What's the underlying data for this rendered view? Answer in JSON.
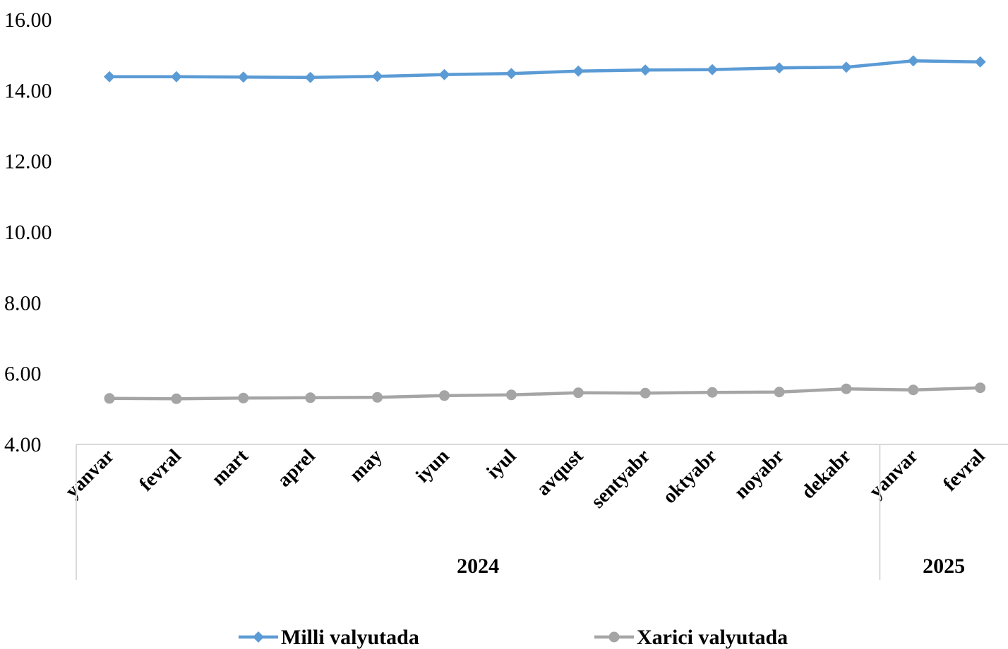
{
  "chart_data": {
    "type": "line",
    "categories": [
      "yanvar",
      "fevral",
      "mart",
      "aprel",
      "may",
      "iyun",
      "iyul",
      "avqust",
      "sentyabr",
      "oktyabr",
      "noyabr",
      "dekabr",
      "yanvar",
      "fevral"
    ],
    "groups": [
      {
        "label": "2024",
        "count": 12
      },
      {
        "label": "2025",
        "count": 2
      }
    ],
    "yticks": [
      "4.00",
      "6.00",
      "8.00",
      "10.00",
      "12.00",
      "14.00",
      "16.00"
    ],
    "ylim": [
      4,
      16
    ],
    "series": [
      {
        "name": "Milli valyutada",
        "color": "#5B9BD5",
        "marker": "diamond",
        "values": [
          14.39,
          14.39,
          14.38,
          14.37,
          14.4,
          14.45,
          14.48,
          14.55,
          14.58,
          14.59,
          14.64,
          14.66,
          14.84,
          14.81
        ]
      },
      {
        "name": "Xarici valyutada",
        "color": "#A5A5A5",
        "marker": "circle",
        "values": [
          5.3,
          5.29,
          5.31,
          5.32,
          5.33,
          5.38,
          5.4,
          5.46,
          5.45,
          5.47,
          5.48,
          5.57,
          5.54,
          5.6
        ]
      }
    ],
    "grid": false,
    "legend": "bottom"
  }
}
